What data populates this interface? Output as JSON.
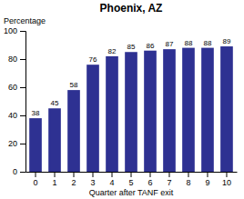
{
  "chart_data": {
    "type": "bar",
    "title": "Phoenix, AZ",
    "xlabel": "Quarter after TANF exit",
    "ylabel": "Percentage",
    "categories": [
      0,
      1,
      2,
      3,
      4,
      5,
      6,
      7,
      8,
      9,
      10
    ],
    "values": [
      38,
      45,
      58,
      76,
      82,
      85,
      86,
      87,
      88,
      88,
      89
    ],
    "color": "#2E3192",
    "ylim": [
      0,
      100
    ],
    "yticks": [
      0,
      20,
      40,
      60,
      80,
      100
    ],
    "grid": false,
    "data_labels": true
  }
}
